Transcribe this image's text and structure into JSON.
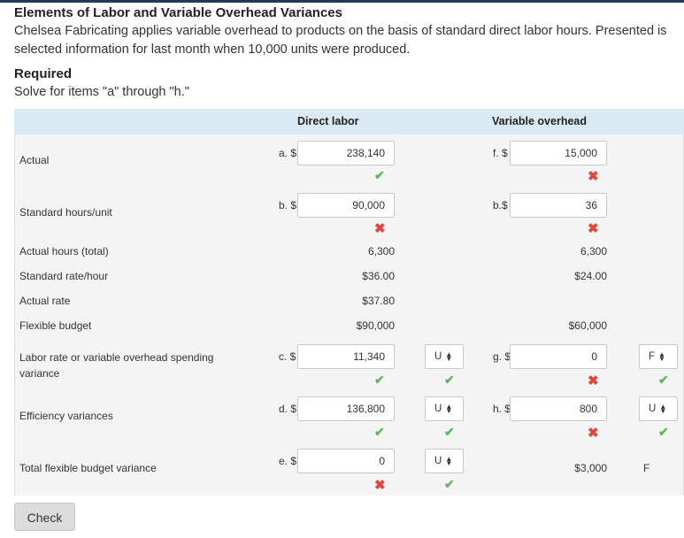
{
  "title": "Elements of Labor and Variable Overhead Variances",
  "intro": "Chelsea Fabricating applies variable overhead to products on the basis of standard direct labor hours. Presented is selected information for last month when 10,000 units were produced.",
  "required_heading": "Required",
  "required_text": "Solve for items \"a\" through \"h.\"",
  "columns": {
    "direct_labor": "Direct labor",
    "variable_overhead": "Variable overhead"
  },
  "rows": {
    "actual": "Actual",
    "standard_hours_unit": "Standard hours/unit",
    "actual_hours_total": "Actual hours (total)",
    "standard_rate_hour": "Standard rate/hour",
    "actual_rate": "Actual rate",
    "flexible_budget": "Flexible budget",
    "rate_spending_variance": "Labor rate or variable overhead spending variance",
    "efficiency_variances": "Efficiency variances",
    "total_flexible_budget_variance": "Total flexible budget variance"
  },
  "prefixes": {
    "a": "a. $",
    "b": "b. $",
    "c": "c. $",
    "d": "d. $",
    "e": "e. $",
    "f": "f. $",
    "b_vo": "b.$",
    "g": "g. $",
    "h": "h. $"
  },
  "inputs": {
    "a": "238,140",
    "b": "90,000",
    "c": "11,340",
    "d": "136,800",
    "e": "0",
    "f": "15,000",
    "b_vo": "36",
    "g": "0",
    "h": "800"
  },
  "static": {
    "dl_actual_hours": "6,300",
    "dl_standard_rate": "$36.00",
    "dl_actual_rate": "$37.80",
    "dl_flexible_budget": "$90,000",
    "vo_actual_hours": "6,300",
    "vo_standard_rate": "$24.00",
    "vo_flexible_budget": "$60,000",
    "vo_total_variance": "$3,000",
    "vo_total_variance_type": "F"
  },
  "selects": {
    "c": "U",
    "d": "U",
    "e": "U",
    "g": "F",
    "h": "U"
  },
  "marks": {
    "correct": "✔",
    "incorrect": "✖"
  },
  "check_button": "Check",
  "colors": {
    "header_bg": "#d9eaf3",
    "correct": "#5cb85c",
    "incorrect": "#e2453c"
  }
}
